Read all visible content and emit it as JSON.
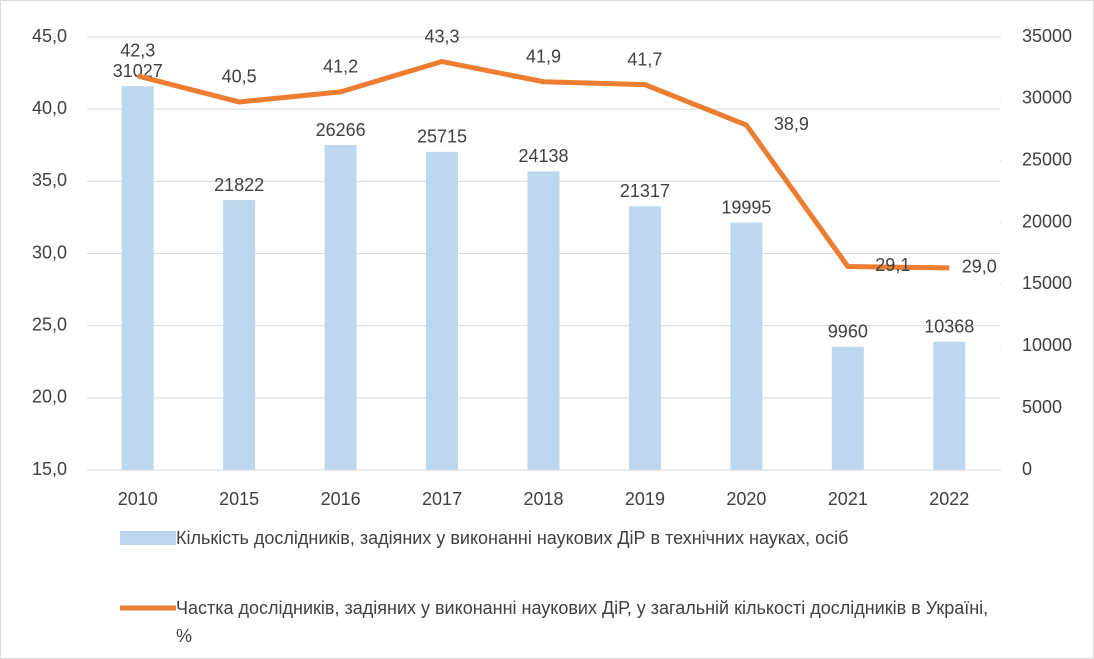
{
  "chart_data": {
    "type": "bar-line",
    "categories": [
      "2010",
      "2015",
      "2016",
      "2017",
      "2018",
      "2019",
      "2020",
      "2021",
      "2022"
    ],
    "series": [
      {
        "name": "Кількість дослідників, задіяних у виконанні наукових ДіР в технічних науках, осіб",
        "type": "bar",
        "axis": "y2",
        "color": "#bdd7ee",
        "values": [
          31027,
          21822,
          26266,
          25715,
          24138,
          21317,
          19995,
          9960,
          10368
        ]
      },
      {
        "name": "Частка дослідників, задіяних у виконанні наукових ДіР, у загальній кількості дослідників в Україні, %",
        "type": "line",
        "axis": "y",
        "color": "#ed7d31",
        "values": [
          42.3,
          40.5,
          41.2,
          43.3,
          41.9,
          41.7,
          38.9,
          29.1,
          29.0
        ],
        "value_labels": [
          "42,3",
          "40,5",
          "41,2",
          "43,3",
          "41,9",
          "41,7",
          "38,9",
          "29,1",
          "29,0"
        ]
      }
    ],
    "ylim": [
      15,
      45
    ],
    "yticks": [
      {
        "value": 15,
        "label": "15,0"
      },
      {
        "value": 20,
        "label": "20,0"
      },
      {
        "value": 25,
        "label": "25,0"
      },
      {
        "value": 30,
        "label": "30,0"
      },
      {
        "value": 35,
        "label": "35,0"
      },
      {
        "value": 40,
        "label": "40,0"
      },
      {
        "value": 45,
        "label": "45,0"
      }
    ],
    "y2lim": [
      0,
      35000
    ],
    "y2ticks": [
      0,
      5000,
      10000,
      15000,
      20000,
      25000,
      30000,
      35000
    ],
    "grid": true,
    "legend": "bottom"
  }
}
